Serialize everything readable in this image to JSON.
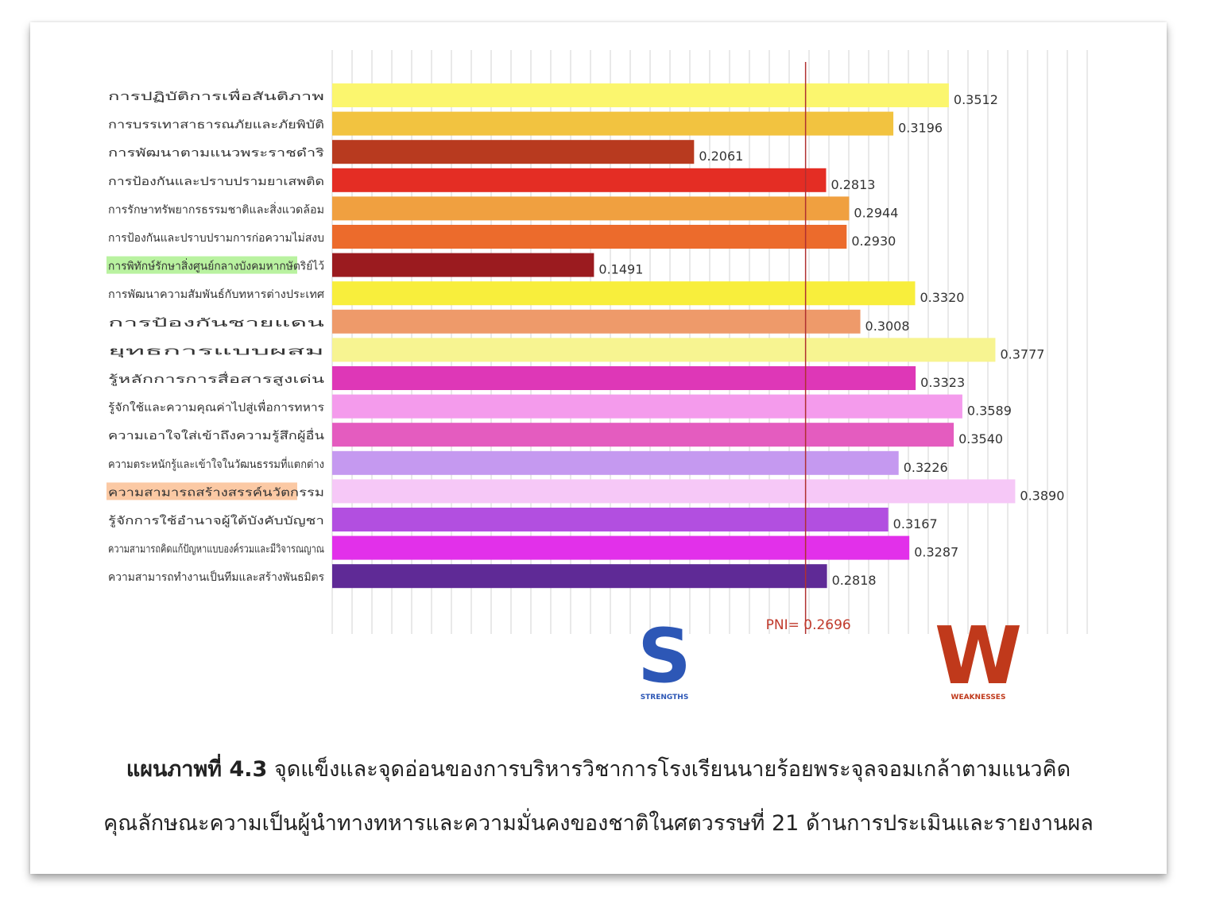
{
  "figure": {
    "caption_number": "แผนภาพที่ 4.3",
    "caption_line1": "จุดแข็งและจุดอ่อนของการบริหารวิชาการโรงเรียนนายร้อยพระจุลจอมเกล้าตามแนวคิด",
    "caption_line2": "คุณลักษณะความเป็นผู้นำทางทหารและความมั่นคงของชาติในศตวรรษที่ 21 ด้านการประเมินและรายงานผล"
  },
  "chart_data": {
    "type": "bar",
    "orientation": "horizontal",
    "categories": [
      "การปฏิบัติการเพื่อสันติภาพ",
      "การบรรเทาสาธารณภัยและภัยพิบัติ",
      "การพัฒนาตามแนวพระราชดำริ",
      "การป้องกันและปราบปรามยาเสพติด",
      "การรักษาทรัพยากรธรรมชาติและสิ่งแวดล้อม",
      "การป้องกันและปราบปรามการก่อความไม่สงบ",
      "การพิทักษ์รักษาสิ่งศูนย์กลางบังคมหากษัตริย์ไว้",
      "การพัฒนาความสัมพันธ์กับทหารต่างประเทศ",
      "การป้องกันชายแดน",
      "ยุทธการแบบผสม",
      "รู้หลักการการสื่อสารสูงเด่น",
      "รู้จักใช้และความคุณค่าไปสู่เพื่อการทหาร",
      "ความเอาใจใส่เข้าถึงความรู้สึกผู้อื่น",
      "ความตระหนักรู้และเข้าใจในวัฒนธรรมที่แตกต่าง",
      "ความสามารถสร้างสรรค์นวัตกรรม",
      "รู้จักการใช้อำนาจผู้ใต้บังคับบัญชา",
      "ความสามารถคิดแก้ปัญหาแบบองค์รวมและมีวิจารณญาณ",
      "ความสามารถทำงานเป็นทีมและสร้างพันธมิตร"
    ],
    "values": [
      0.3512,
      0.3196,
      0.2061,
      0.2813,
      0.2944,
      0.293,
      0.1491,
      0.332,
      0.3008,
      0.3777,
      0.3323,
      0.3589,
      0.354,
      0.3226,
      0.389,
      0.3167,
      0.3287,
      0.2818
    ],
    "value_labels": [
      "0.3512",
      "0.3196",
      "0.2061",
      "0.2813",
      "0.2944",
      "0.2930",
      "0.1491",
      "0.3320",
      "0.3008",
      "0.3777",
      "0.3323",
      "0.3589",
      "0.3540",
      "0.3226",
      "0.3890",
      "0.3167",
      "0.3287",
      "0.2818"
    ],
    "bar_colors": [
      "#fbf66e",
      "#f2c340",
      "#b83a1f",
      "#e42d24",
      "#f0a040",
      "#ec6b2c",
      "#9b1b1f",
      "#f8ee3c",
      "#ee9a6a",
      "#f7f491",
      "#de37b7",
      "#f49bec",
      "#e45cbf",
      "#c599f0",
      "#f6c8f7",
      "#b24fe0",
      "#e230ea",
      "#5f2a96"
    ],
    "highlighted_categories": [
      {
        "index": 6,
        "color": "#b9f2a0"
      },
      {
        "index": 14,
        "color": "#fbc9a4"
      }
    ],
    "xlim": [
      0,
      0.43
    ],
    "threshold": {
      "value": 0.2696,
      "label": "PNI= 0.2696",
      "color": "#c0392b"
    },
    "grid": true,
    "title": "",
    "xlabel": "",
    "ylabel": ""
  },
  "markers": {
    "strength": {
      "letter": "S",
      "word": "STRENGTHS",
      "color": "#2d57b6"
    },
    "weakness": {
      "letter": "W",
      "word": "WEAKNESSES",
      "color": "#c0391b"
    }
  }
}
